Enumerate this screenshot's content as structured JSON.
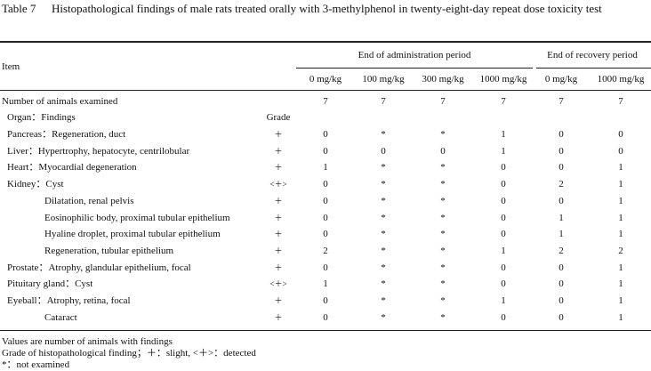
{
  "header": {
    "label": "Table 7",
    "title": "Histopathological findings of male rats treated orally with 3-methylphenol in twenty-eight-day repeat dose toxicity test"
  },
  "table": {
    "item_header": "Item",
    "groups": [
      "End of administration period",
      "End of recovery period"
    ],
    "columns": [
      "0 mg/kg",
      "100 mg/kg",
      "300 mg/kg",
      "1000 mg/kg",
      "0 mg/kg",
      "1000 mg/kg"
    ],
    "animals": {
      "label": "Number of animals examined",
      "values": [
        "7",
        "7",
        "7",
        "7",
        "7",
        "7"
      ]
    },
    "organ_header": "Organ：Findings",
    "grade_header": "Grade",
    "rows": [
      [
        "Pancreas：Regeneration, duct",
        "＋",
        "0",
        "*",
        "*",
        "1",
        "0",
        "0"
      ],
      [
        "Liver：Hypertrophy, hepatocyte, centrilobular",
        "＋",
        "0",
        "0",
        "0",
        "1",
        "0",
        "0"
      ],
      [
        "Heart：Myocardial degeneration",
        "＋",
        "1",
        "*",
        "*",
        "0",
        "0",
        "1"
      ],
      [
        "Kidney：Cyst",
        "<＋>",
        "0",
        "*",
        "*",
        "0",
        "2",
        "1"
      ],
      [
        "Dilatation, renal pelvis",
        "＋",
        "0",
        "*",
        "*",
        "0",
        "0",
        "1"
      ],
      [
        "Eosinophilic body, proximal tubular epithelium",
        "＋",
        "0",
        "*",
        "*",
        "0",
        "1",
        "1"
      ],
      [
        "Hyaline droplet, proximal tubular epithelium",
        "＋",
        "0",
        "*",
        "*",
        "0",
        "1",
        "1"
      ],
      [
        "Regeneration, tubular epithelium",
        "＋",
        "2",
        "*",
        "*",
        "1",
        "2",
        "2"
      ],
      [
        "Prostate：Atrophy, glandular epithelium, focal",
        "＋",
        "0",
        "*",
        "*",
        "0",
        "0",
        "1"
      ],
      [
        "Pituitary gland：Cyst",
        "<＋>",
        "1",
        "*",
        "*",
        "0",
        "0",
        "1"
      ],
      [
        "Eyeball：Atrophy, retina, focal",
        "＋",
        "0",
        "*",
        "*",
        "1",
        "0",
        "1"
      ],
      [
        "Cataract",
        "＋",
        "0",
        "*",
        "*",
        "0",
        "0",
        "1"
      ]
    ]
  },
  "footnotes": [
    "Values are number of animals with findings",
    "Grade of histopathological finding；＋：slight, <＋>：detected",
    "*：not examined"
  ]
}
